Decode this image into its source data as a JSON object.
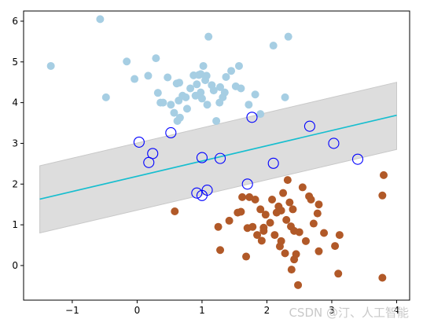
{
  "chart_data": {
    "type": "scatter",
    "title": "",
    "xlabel": "",
    "ylabel": "",
    "xlim": [
      -1.75,
      4.2
    ],
    "ylim": [
      -0.85,
      6.25
    ],
    "x_ticks": [
      "−1",
      "0",
      "1",
      "2",
      "3",
      "4"
    ],
    "x_tick_values": [
      -1,
      0,
      1,
      2,
      3,
      4
    ],
    "y_ticks": [
      "0",
      "1",
      "2",
      "3",
      "4",
      "5",
      "6"
    ],
    "y_tick_values": [
      0,
      1,
      2,
      3,
      4,
      5,
      6
    ],
    "grid": false,
    "legend": "none",
    "colors": {
      "class_a": "#a6cee3",
      "class_b": "#b15928",
      "decision_line": "#17becf",
      "margin_band": "#d9d9d9",
      "support_vector_ring": "#0000ff"
    },
    "margin_band": {
      "lower": [
        [
          -1.5,
          0.8
        ],
        [
          4.0,
          2.85
        ]
      ],
      "upper": [
        [
          -1.5,
          2.45
        ],
        [
          4.0,
          4.5
        ]
      ]
    },
    "decision_line": [
      [
        -1.5,
        1.63
      ],
      [
        4.0,
        3.69
      ]
    ],
    "series": [
      {
        "points": [
          [
            -0.57,
            6.05
          ],
          [
            -1.33,
            4.9
          ],
          [
            -0.48,
            4.13
          ],
          [
            -0.16,
            5.01
          ],
          [
            -0.04,
            4.58
          ],
          [
            0.17,
            4.66
          ],
          [
            0.29,
            5.09
          ],
          [
            0.32,
            4.24
          ],
          [
            0.36,
            4.0
          ],
          [
            0.4,
            4.0
          ],
          [
            0.47,
            4.62
          ],
          [
            0.52,
            3.95
          ],
          [
            0.57,
            3.75
          ],
          [
            0.61,
            4.47
          ],
          [
            0.62,
            3.55
          ],
          [
            0.66,
            3.63
          ],
          [
            0.64,
            4.05
          ],
          [
            0.65,
            4.49
          ],
          [
            0.7,
            4.17
          ],
          [
            0.75,
            4.13
          ],
          [
            0.77,
            3.85
          ],
          [
            0.82,
            4.35
          ],
          [
            0.87,
            4.67
          ],
          [
            0.9,
            4.17
          ],
          [
            0.92,
            4.45
          ],
          [
            0.95,
            4.68
          ],
          [
            0.98,
            4.25
          ],
          [
            1.0,
            4.1
          ],
          [
            1.02,
            4.9
          ],
          [
            1.05,
            4.55
          ],
          [
            1.07,
            4.66
          ],
          [
            1.1,
            5.62
          ],
          [
            1.15,
            4.43
          ],
          [
            1.18,
            4.3
          ],
          [
            1.22,
            3.55
          ],
          [
            1.28,
            4.38
          ],
          [
            1.32,
            4.13
          ],
          [
            1.35,
            4.25
          ],
          [
            1.37,
            4.63
          ],
          [
            1.45,
            4.78
          ],
          [
            1.52,
            4.4
          ],
          [
            1.57,
            4.9
          ],
          [
            1.6,
            4.35
          ],
          [
            1.72,
            3.95
          ],
          [
            1.82,
            4.2
          ],
          [
            1.9,
            3.72
          ],
          [
            2.1,
            5.4
          ],
          [
            2.28,
            4.13
          ],
          [
            2.33,
            5.62
          ],
          [
            1.08,
            3.95
          ],
          [
            0.98,
            4.7
          ],
          [
            1.27,
            4.0
          ]
        ]
      },
      {
        "points": [
          [
            0.58,
            1.33
          ],
          [
            1.25,
            0.95
          ],
          [
            1.28,
            0.38
          ],
          [
            1.42,
            1.1
          ],
          [
            1.55,
            1.3
          ],
          [
            1.6,
            1.32
          ],
          [
            1.62,
            1.68
          ],
          [
            1.68,
            0.22
          ],
          [
            1.7,
            0.92
          ],
          [
            1.73,
            1.68
          ],
          [
            1.78,
            0.95
          ],
          [
            1.82,
            1.62
          ],
          [
            1.85,
            0.75
          ],
          [
            1.9,
            1.38
          ],
          [
            1.92,
            0.61
          ],
          [
            1.95,
            0.93
          ],
          [
            1.98,
            1.25
          ],
          [
            2.05,
            1.05
          ],
          [
            2.08,
            1.62
          ],
          [
            2.12,
            0.75
          ],
          [
            2.15,
            1.3
          ],
          [
            2.18,
            1.45
          ],
          [
            2.2,
            0.47
          ],
          [
            2.22,
            0.6
          ],
          [
            2.25,
            1.78
          ],
          [
            2.28,
            0.3
          ],
          [
            2.3,
            1.12
          ],
          [
            2.32,
            2.1
          ],
          [
            2.35,
            1.55
          ],
          [
            2.37,
            0.96
          ],
          [
            2.38,
            -0.1
          ],
          [
            2.4,
            1.38
          ],
          [
            2.42,
            0.85
          ],
          [
            2.45,
            0.28
          ],
          [
            2.48,
            -0.48
          ],
          [
            2.5,
            0.82
          ],
          [
            2.55,
            1.92
          ],
          [
            2.6,
            0.6
          ],
          [
            2.65,
            1.7
          ],
          [
            2.68,
            1.62
          ],
          [
            2.72,
            1.03
          ],
          [
            2.78,
            1.28
          ],
          [
            2.8,
            1.5
          ],
          [
            2.8,
            0.35
          ],
          [
            2.88,
            0.8
          ],
          [
            3.05,
            0.48
          ],
          [
            3.1,
            -0.2
          ],
          [
            3.12,
            0.75
          ],
          [
            3.78,
            1.72
          ],
          [
            3.8,
            2.22
          ],
          [
            3.78,
            -0.3
          ],
          [
            2.22,
            1.35
          ],
          [
            1.95,
            0.85
          ],
          [
            2.42,
            0.15
          ]
        ]
      }
    ],
    "support_vectors": [
      [
        0.03,
        3.03
      ],
      [
        0.18,
        2.53
      ],
      [
        0.24,
        2.75
      ],
      [
        0.52,
        3.26
      ],
      [
        0.92,
        1.78
      ],
      [
        1.0,
        1.72
      ],
      [
        1.0,
        2.65
      ],
      [
        1.08,
        1.85
      ],
      [
        1.28,
        2.63
      ],
      [
        1.7,
        2.0
      ],
      [
        1.77,
        3.64
      ],
      [
        2.1,
        2.51
      ],
      [
        2.66,
        3.42
      ],
      [
        3.03,
        3.0
      ],
      [
        3.4,
        2.61
      ]
    ],
    "watermark": "CSDN @汀、人工智能"
  }
}
